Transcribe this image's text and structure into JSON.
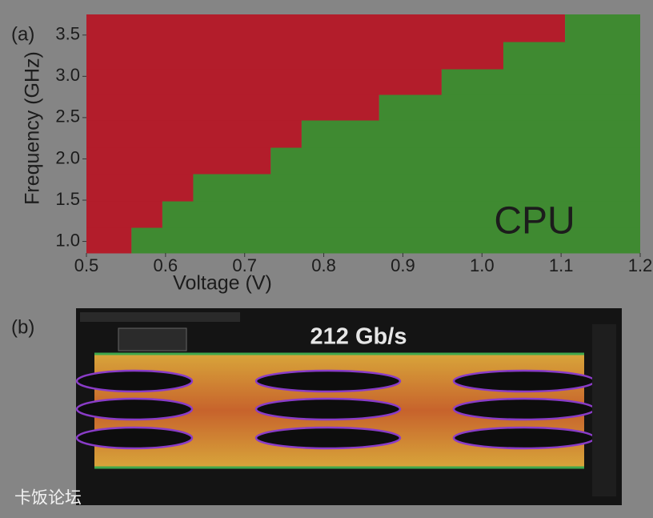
{
  "chart_data": {
    "type": "shmoo",
    "panel_label": "(a)",
    "annotation": "CPU",
    "xlabel": "Voltage (V)",
    "ylabel": "Frequency (GHz)",
    "xlim": [
      0.5,
      1.2
    ],
    "ylim": [
      0.86,
      3.75
    ],
    "xticks": [
      0.5,
      0.6,
      0.7,
      0.8,
      0.9,
      {
        "value": 1,
        "label": "1.0"
      },
      1.1,
      1.2
    ],
    "yticks": [
      {
        "value": 1,
        "label": "1.0"
      },
      1.5,
      {
        "value": 2,
        "label": "2.0"
      },
      2.5,
      {
        "value": 3,
        "label": "3.0"
      },
      3.5
    ],
    "row_edges": [
      0.86,
      1.17,
      1.49,
      1.82,
      2.14,
      2.47,
      2.78,
      3.09,
      3.42,
      3.75
    ],
    "min_pass_voltage": [
      0.557,
      0.596,
      0.635,
      0.733,
      0.772,
      0.87,
      0.949,
      1.027,
      1.105
    ],
    "fail_color": "#b31d2b",
    "pass_color": "#3f8a31"
  },
  "eye_diagram": {
    "panel_label": "(b)",
    "title": "212 Gb/s"
  },
  "watermark": "卡饭论坛"
}
